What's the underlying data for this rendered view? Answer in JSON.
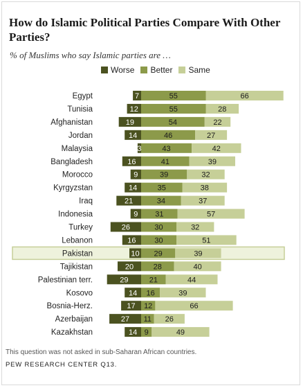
{
  "colors": {
    "worse": "#4b5220",
    "better": "#8c9a4a",
    "same": "#c6cf98",
    "highlight_fill": "#eef2dc",
    "highlight_border": "#c6cf98"
  },
  "highlight_category": "Pakistan",
  "footnote": "This question was not asked in sub-Saharan African countries.",
  "source": "PEW RESEARCH CENTER Q13.",
  "chart_data": {
    "type": "bar",
    "orientation": "horizontal",
    "stacked": true,
    "title": "How do Islamic Political Parties Compare With Other Parties?",
    "subtitle": "% of Muslims who say Islamic parties are …",
    "legend_position": "top",
    "categories": [
      "Egypt",
      "Tunisia",
      "Afghanistan",
      "Jordan",
      "Malaysia",
      "Bangladesh",
      "Morocco",
      "Kyrgyzstan",
      "Iraq",
      "Indonesia",
      "Turkey",
      "Lebanon",
      "Pakistan",
      "Tajikistan",
      "Palestinian terr.",
      "Kosovo",
      "Bosnia-Herz.",
      "Azerbaijan",
      "Kazakhstan"
    ],
    "series": [
      {
        "name": "Worse",
        "values": [
          7,
          12,
          19,
          14,
          3,
          16,
          9,
          14,
          21,
          9,
          26,
          16,
          10,
          20,
          29,
          14,
          17,
          27,
          14
        ]
      },
      {
        "name": "Better",
        "values": [
          55,
          55,
          54,
          46,
          43,
          41,
          39,
          35,
          34,
          31,
          30,
          30,
          29,
          28,
          21,
          16,
          12,
          11,
          9
        ]
      },
      {
        "name": "Same",
        "values": [
          66,
          28,
          22,
          27,
          42,
          39,
          32,
          38,
          37,
          57,
          32,
          51,
          39,
          40,
          44,
          39,
          66,
          26,
          49
        ]
      }
    ]
  }
}
